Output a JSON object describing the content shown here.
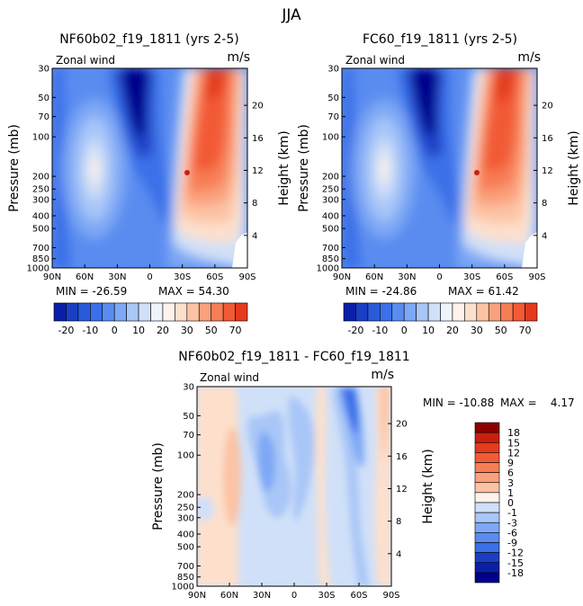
{
  "page_title": "JJA",
  "colors": {
    "neg": [
      "#00008b",
      "#0a1fa8",
      "#1a3fc4",
      "#2a5ad8",
      "#3a70e8",
      "#5a8cf0",
      "#7ea8f5",
      "#a8c6f7",
      "#d0e0f8",
      "#eef4fd"
    ],
    "pos": [
      "#fff2ea",
      "#fde0cc",
      "#fcc3a4",
      "#faa07c",
      "#f77d55",
      "#f25a35",
      "#e43a1e",
      "#c8200e",
      "#a80c06",
      "#8b0000"
    ]
  },
  "chart_data": [
    {
      "id": "panel-nf60",
      "type": "contour",
      "title": "NF60b02_f19_1811 (yrs 2-5)",
      "variable_label": "Zonal wind",
      "units": "m/s",
      "xlabel": "",
      "ylabel": "Pressure (mb)",
      "y2label": "Height (km)",
      "x_ticks": [
        "90N",
        "60N",
        "30N",
        "0",
        "30S",
        "60S",
        "90S"
      ],
      "x_values": [
        90,
        60,
        30,
        0,
        -30,
        -60,
        -90
      ],
      "y_ticks": [
        "30",
        "50",
        "70",
        "100",
        "200",
        "250",
        "300",
        "400",
        "500",
        "700",
        "850",
        "1000"
      ],
      "y_values": [
        30,
        50,
        70,
        100,
        200,
        250,
        300,
        400,
        500,
        700,
        850,
        1000
      ],
      "y2_ticks": [
        "4",
        "8",
        "12",
        "16",
        "20"
      ],
      "y2_values": [
        4,
        8,
        12,
        16,
        20
      ],
      "ylim": [
        1000,
        30
      ],
      "min_label": "MIN = -26.59",
      "max_label": "MAX = 54.30",
      "min": -26.59,
      "max": 54.3,
      "features": [
        {
          "lat": -48,
          "p": 220,
          "value": 54,
          "sign": "pos"
        },
        {
          "lat": -40,
          "p": 300,
          "value": 40,
          "sign": "pos"
        },
        {
          "lat": 15,
          "p": 45,
          "value": -26,
          "sign": "neg"
        },
        {
          "lat": 50,
          "p": 200,
          "value": 5,
          "sign": "pos"
        }
      ]
    },
    {
      "id": "panel-fc60",
      "type": "contour",
      "title": "FC60_f19_1811 (yrs 2-5)",
      "variable_label": "Zonal wind",
      "units": "m/s",
      "xlabel": "",
      "ylabel": "Pressure (mb)",
      "y2label": "Height (km)",
      "x_ticks": [
        "90N",
        "60N",
        "30N",
        "0",
        "30S",
        "60S",
        "90S"
      ],
      "x_values": [
        90,
        60,
        30,
        0,
        -30,
        -60,
        -90
      ],
      "y_ticks": [
        "30",
        "50",
        "70",
        "100",
        "200",
        "250",
        "300",
        "400",
        "500",
        "700",
        "850",
        "1000"
      ],
      "y_values": [
        30,
        50,
        70,
        100,
        200,
        250,
        300,
        400,
        500,
        700,
        850,
        1000
      ],
      "y2_ticks": [
        "4",
        "8",
        "12",
        "16",
        "20"
      ],
      "y2_values": [
        4,
        8,
        12,
        16,
        20
      ],
      "ylim": [
        1000,
        30
      ],
      "min_label": "MIN = -24.86",
      "max_label": "MAX = 61.42",
      "min": -24.86,
      "max": 61.42,
      "features": [
        {
          "lat": -48,
          "p": 220,
          "value": 61,
          "sign": "pos"
        },
        {
          "lat": -40,
          "p": 300,
          "value": 45,
          "sign": "pos"
        },
        {
          "lat": 15,
          "p": 45,
          "value": -25,
          "sign": "neg"
        },
        {
          "lat": 50,
          "p": 200,
          "value": 5,
          "sign": "pos"
        }
      ]
    },
    {
      "id": "panel-diff",
      "type": "contour",
      "title": "NF60b02_f19_1811 - FC60_f19_1811",
      "variable_label": "Zonal wind",
      "units": "m/s",
      "xlabel": "",
      "ylabel": "Pressure (mb)",
      "y2label": "Height (km)",
      "x_ticks": [
        "90N",
        "60N",
        "30N",
        "0",
        "30S",
        "60S",
        "90S"
      ],
      "x_values": [
        90,
        60,
        30,
        0,
        -30,
        -60,
        -90
      ],
      "y_ticks": [
        "30",
        "50",
        "70",
        "100",
        "200",
        "250",
        "300",
        "400",
        "500",
        "700",
        "850",
        "1000"
      ],
      "y_values": [
        30,
        50,
        70,
        100,
        200,
        250,
        300,
        400,
        500,
        700,
        850,
        1000
      ],
      "y2_ticks": [
        "4",
        "8",
        "12",
        "16",
        "20"
      ],
      "y2_values": [
        4,
        8,
        12,
        16,
        20
      ],
      "ylim": [
        1000,
        30
      ],
      "min_label": "MIN = -10.88",
      "max_label": "MAX =    4.17",
      "min": -10.88,
      "max": 4.17
    }
  ],
  "colorbar_horizontal": {
    "labels": [
      "-20",
      "-10",
      "0",
      "10",
      "20",
      "30",
      "50",
      "70"
    ],
    "levels": [
      -25,
      -20,
      -15,
      -10,
      -5,
      0,
      5,
      10,
      15,
      20,
      25,
      30,
      40,
      50,
      60,
      70
    ]
  },
  "colorbar_vertical": {
    "labels": [
      "18",
      "15",
      "12",
      "9",
      "6",
      "3",
      "1",
      "0",
      "-1",
      "-3",
      "-6",
      "-9",
      "-12",
      "-15",
      "-18"
    ],
    "levels": [
      18,
      15,
      12,
      9,
      6,
      3,
      1,
      0,
      -1,
      -3,
      -6,
      -9,
      -12,
      -15,
      -18
    ]
  }
}
